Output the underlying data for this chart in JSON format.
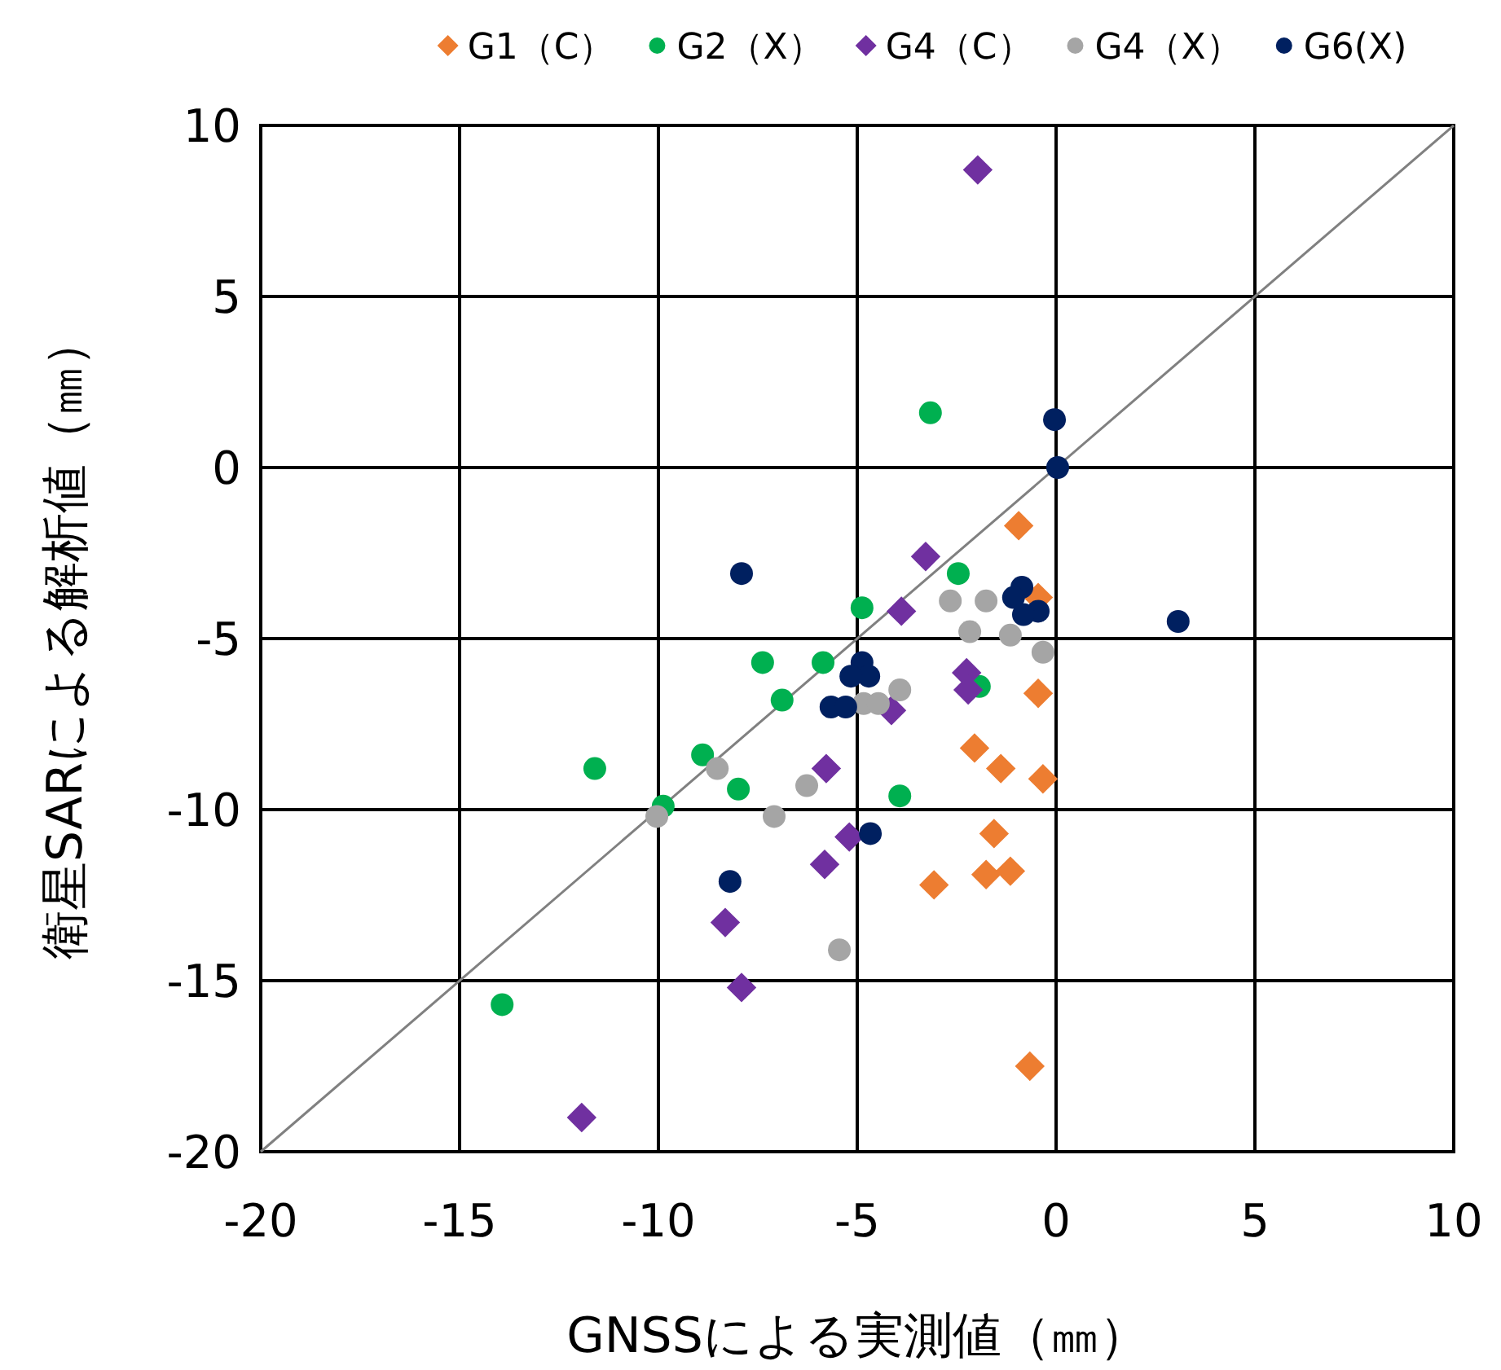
{
  "chart_data": {
    "type": "scatter",
    "xlabel": "GNSSによる実測値（㎜）",
    "ylabel": "衛星SARによる解析値（㎜）",
    "xlim": [
      -20,
      10
    ],
    "ylim": [
      -20,
      10
    ],
    "xticks": [
      -20,
      -15,
      -10,
      -5,
      0,
      5,
      10
    ],
    "yticks": [
      -20,
      -15,
      -10,
      -5,
      0,
      5,
      10
    ],
    "grid": true,
    "legend": "top",
    "series": [
      {
        "type": "line",
        "color": "#808080",
        "marker": "none",
        "x": [
          -20,
          10
        ],
        "values": [
          -20,
          10
        ]
      },
      {
        "name": "G1（C）",
        "color": "#ed7d31",
        "marker": "diamond",
        "x": [
          -0.94,
          -0.45,
          -0.45,
          -2.05,
          -1.39,
          -0.33,
          -1.56,
          -1.76,
          -1.15,
          -3.07,
          -0.66
        ],
        "values": [
          -1.7,
          -3.8,
          -6.6,
          -8.2,
          -8.8,
          -9.1,
          -10.7,
          -11.9,
          -11.8,
          -12.2,
          -17.5
        ]
      },
      {
        "name": "G2（X）",
        "color": "#00b050",
        "marker": "circle",
        "x": [
          -3.16,
          -2.46,
          -4.88,
          -7.38,
          -5.86,
          -6.89,
          -1.93,
          -11.6,
          -8.89,
          -7.99,
          -9.88,
          -3.93,
          -13.93
        ],
        "values": [
          1.6,
          -3.1,
          -4.1,
          -5.7,
          -5.7,
          -6.8,
          -6.4,
          -8.8,
          -8.4,
          -9.4,
          -9.9,
          -9.6,
          -15.7
        ]
      },
      {
        "name": "G4（C）",
        "color": "#7030a0",
        "marker": "diamond",
        "x": [
          -1.97,
          -3.28,
          -3.89,
          -2.25,
          -2.21,
          -4.14,
          -5.78,
          -5.2,
          -5.82,
          -8.32,
          -7.91,
          -11.93
        ],
        "values": [
          8.7,
          -2.6,
          -4.2,
          -6.0,
          -6.5,
          -7.1,
          -8.8,
          -10.8,
          -11.6,
          -13.3,
          -15.2,
          -19.0
        ]
      },
      {
        "name": "G4（X）",
        "color": "#a5a5a5",
        "marker": "circle",
        "x": [
          -2.66,
          -1.76,
          -2.17,
          -1.15,
          -0.33,
          -3.93,
          -4.84,
          -4.47,
          -8.52,
          -6.27,
          -7.09,
          -10.04,
          -5.45
        ],
        "values": [
          -3.9,
          -3.9,
          -4.8,
          -4.9,
          -5.4,
          -6.5,
          -6.9,
          -6.9,
          -8.8,
          -9.3,
          -10.2,
          -10.2,
          -14.1
        ]
      },
      {
        "name": "G6(X)",
        "color": "#002060",
        "marker": "circle",
        "x": [
          -0.04,
          0.04,
          -7.91,
          -0.86,
          -1.07,
          -0.45,
          -0.82,
          -4.88,
          -4.71,
          -5.16,
          -5.66,
          -5.29,
          -4.67,
          -8.2,
          3.07
        ],
        "values": [
          1.4,
          0.0,
          -3.1,
          -3.5,
          -3.8,
          -4.2,
          -4.3,
          -5.7,
          -6.1,
          -6.1,
          -7.0,
          -7.0,
          -10.7,
          -12.1,
          -4.5
        ]
      }
    ]
  }
}
